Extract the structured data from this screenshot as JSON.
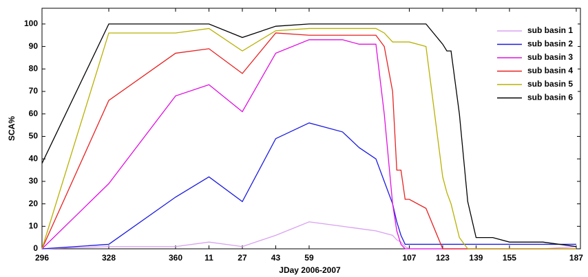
{
  "chart_data": {
    "type": "line",
    "x_label": "JDay 2006-2007",
    "y_label": "SCA%",
    "x": [
      296,
      328,
      360,
      376,
      392,
      408,
      424,
      432,
      440,
      448,
      456,
      460,
      464,
      466,
      468,
      470,
      472,
      480,
      488,
      490,
      492,
      496,
      500,
      504,
      512,
      520,
      536,
      552
    ],
    "series": [
      {
        "name": "sub basin 1",
        "color": "#d9a0f0",
        "values": [
          0,
          1,
          1,
          3,
          1,
          6,
          12,
          11,
          10,
          9,
          8,
          7,
          6,
          4,
          3,
          1,
          0,
          0,
          0,
          0,
          0,
          0,
          0,
          0,
          0,
          0,
          0,
          1
        ]
      },
      {
        "name": "sub basin 2",
        "color": "#1a1ae0",
        "values": [
          0,
          2,
          23,
          32,
          21,
          49,
          56,
          54,
          52,
          45,
          40,
          30,
          20,
          12,
          6,
          2,
          2,
          2,
          2,
          2,
          2,
          2,
          2,
          2,
          2,
          2,
          2,
          2
        ]
      },
      {
        "name": "sub basin 3",
        "color": "#e010e0",
        "values": [
          0,
          29,
          68,
          73,
          61,
          87,
          93,
          93,
          93,
          91,
          91,
          60,
          20,
          8,
          2,
          0,
          0,
          0,
          0,
          0,
          0,
          0,
          0,
          0,
          0,
          0,
          0,
          0
        ]
      },
      {
        "name": "sub basin 4",
        "color": "#e82020",
        "values": [
          0,
          66,
          87,
          89,
          78,
          96,
          95,
          95,
          95,
          95,
          95,
          90,
          70,
          35,
          35,
          22,
          22,
          18,
          0,
          0,
          0,
          0,
          0,
          0,
          0,
          0,
          0,
          0
        ]
      },
      {
        "name": "sub basin 5",
        "color": "#b8b000",
        "values": [
          0,
          96,
          96,
          98,
          88,
          97,
          98,
          98,
          98,
          98,
          98,
          96,
          92,
          92,
          92,
          92,
          92,
          90,
          32,
          25,
          20,
          5,
          0,
          0,
          0,
          0,
          0,
          0
        ]
      },
      {
        "name": "sub basin 6",
        "color": "#000000",
        "values": [
          38,
          100,
          100,
          100,
          94,
          99,
          100,
          100,
          100,
          100,
          100,
          100,
          100,
          100,
          100,
          100,
          100,
          100,
          91,
          88,
          88,
          60,
          21,
          5,
          5,
          3,
          3,
          1
        ]
      }
    ],
    "xlim": [
      296,
      554
    ],
    "xticks": [
      296,
      328,
      360,
      {
        "value": 376,
        "label": "11"
      },
      {
        "value": 392,
        "label": "27"
      },
      {
        "value": 408,
        "label": "43"
      },
      {
        "value": 424,
        "label": "59"
      },
      {
        "value": 472,
        "label": "107"
      },
      {
        "value": 488,
        "label": "123"
      },
      {
        "value": 504,
        "label": "139"
      },
      {
        "value": 520,
        "label": "155"
      },
      {
        "value": 552,
        "label": "187"
      }
    ],
    "ylim": [
      0,
      107
    ],
    "yticks": [
      0,
      10,
      20,
      30,
      40,
      50,
      60,
      70,
      80,
      90,
      100
    ],
    "grid": false,
    "legend": "top-right"
  }
}
